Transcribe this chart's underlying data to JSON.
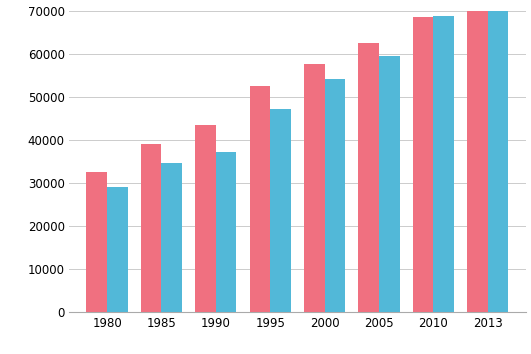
{
  "years": [
    1980,
    1985,
    1990,
    1995,
    2000,
    2005,
    2010,
    2013
  ],
  "female_values": [
    32500,
    39000,
    43500,
    52500,
    57500,
    62500,
    68500,
    71000
  ],
  "male_values": [
    29000,
    34500,
    37000,
    47000,
    54000,
    59500,
    68800,
    71000
  ],
  "female_color": "#F07080",
  "male_color": "#52B8D8",
  "ylim": [
    0,
    70000
  ],
  "yticks": [
    0,
    10000,
    20000,
    30000,
    40000,
    50000,
    60000,
    70000
  ],
  "ytick_labels": [
    "0",
    "10000",
    "20000",
    "30000",
    "40000",
    "50000",
    "60000",
    "70000"
  ],
  "bar_width": 0.38,
  "background_color": "#ffffff",
  "grid_color": "#cccccc",
  "grid_linewidth": 0.7,
  "tick_fontsize": 8.5
}
